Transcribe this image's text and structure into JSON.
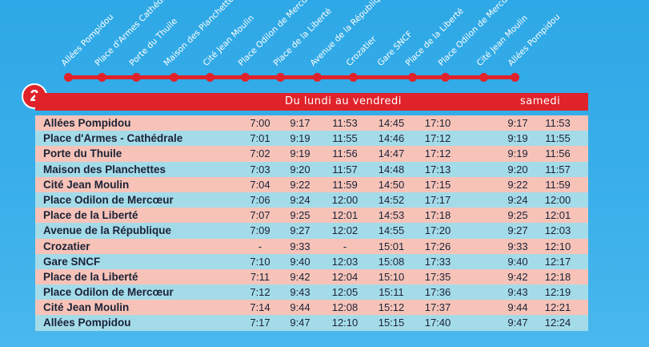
{
  "line_badge": "2",
  "stops_diagram": [
    "Allées Pompidou",
    "Place d'Armes Cathédrale",
    "Porte du Thuile",
    "Maison des Planchettes",
    "Cité Jean Moulin",
    "Place Odilon de Mercœur",
    "Place de la Liberté",
    "Avenue de la République",
    "Crozatier",
    "Gare SNCF",
    "Place de la Liberté",
    "Place Odilon de Mercœur",
    "Cité Jean Moulin",
    "Allées Pompidou"
  ],
  "header": {
    "weekday": "Du lundi au vendredi",
    "saturday": "samedi"
  },
  "rows": [
    {
      "stop": "Allées Pompidou",
      "week": [
        "7:00",
        "9:17",
        "11:53",
        "14:45",
        "17:10"
      ],
      "sat": [
        "9:17",
        "11:53"
      ]
    },
    {
      "stop": "Place d'Armes - Cathédrale",
      "week": [
        "7:01",
        "9:19",
        "11:55",
        "14:46",
        "17:12"
      ],
      "sat": [
        "9:19",
        "11:55"
      ]
    },
    {
      "stop": "Porte du Thuile",
      "week": [
        "7:02",
        "9:19",
        "11:56",
        "14:47",
        "17:12"
      ],
      "sat": [
        "9:19",
        "11:56"
      ]
    },
    {
      "stop": "Maison des Planchettes",
      "week": [
        "7:03",
        "9:20",
        "11:57",
        "14:48",
        "17:13"
      ],
      "sat": [
        "9:20",
        "11:57"
      ]
    },
    {
      "stop": "Cité Jean Moulin",
      "week": [
        "7:04",
        "9:22",
        "11:59",
        "14:50",
        "17:15"
      ],
      "sat": [
        "9:22",
        "11:59"
      ]
    },
    {
      "stop": "Place Odilon de Mercœur",
      "week": [
        "7:06",
        "9:24",
        "12:00",
        "14:52",
        "17:17"
      ],
      "sat": [
        "9:24",
        "12:00"
      ]
    },
    {
      "stop": "Place de la Liberté",
      "week": [
        "7:07",
        "9:25",
        "12:01",
        "14:53",
        "17:18"
      ],
      "sat": [
        "9:25",
        "12:01"
      ]
    },
    {
      "stop": "Avenue de la République",
      "week": [
        "7:09",
        "9:27",
        "12:02",
        "14:55",
        "17:20"
      ],
      "sat": [
        "9:27",
        "12:03"
      ]
    },
    {
      "stop": "Crozatier",
      "week": [
        "-",
        "9:33",
        "-",
        "15:01",
        "17:26"
      ],
      "sat": [
        "9:33",
        "12:10"
      ]
    },
    {
      "stop": "Gare SNCF",
      "week": [
        "7:10",
        "9:40",
        "12:03",
        "15:08",
        "17:33"
      ],
      "sat": [
        "9:40",
        "12:17"
      ]
    },
    {
      "stop": "Place de la Liberté",
      "week": [
        "7:11",
        "9:42",
        "12:04",
        "15:10",
        "17:35"
      ],
      "sat": [
        "9:42",
        "12:18"
      ]
    },
    {
      "stop": "Place Odilon de Mercœur",
      "week": [
        "7:12",
        "9:43",
        "12:05",
        "15:11",
        "17:36"
      ],
      "sat": [
        "9:43",
        "12:19"
      ]
    },
    {
      "stop": "Cité Jean Moulin",
      "week": [
        "7:14",
        "9:44",
        "12:08",
        "15:12",
        "17:37"
      ],
      "sat": [
        "9:44",
        "12:21"
      ]
    },
    {
      "stop": "Allées Pompidou",
      "week": [
        "7:17",
        "9:47",
        "12:10",
        "15:15",
        "17:40"
      ],
      "sat": [
        "9:47",
        "12:24"
      ]
    }
  ],
  "colors": {
    "accent": "#e0232a",
    "row_pink": "#f7c3b8",
    "row_blue": "#a4dbe9",
    "background": "#3bb0ea"
  }
}
